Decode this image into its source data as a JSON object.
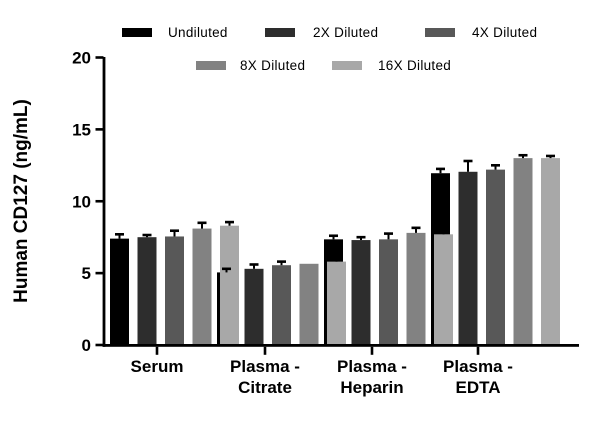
{
  "chart_data": {
    "type": "bar",
    "title": "",
    "ylabel": "Human CD127 (ng/mL)",
    "xlabel": "",
    "ylim": [
      0,
      20
    ],
    "yticks": [
      0,
      5,
      10,
      15,
      20
    ],
    "grid": false,
    "legend_position": "top",
    "categories": [
      "Serum",
      "Plasma -\nCitrate",
      "Plasma -\nHeparin",
      "Plasma -\nEDTA"
    ],
    "series": [
      {
        "name": "Undiluted",
        "color": "#000000",
        "values": [
          7.4,
          5.05,
          7.35,
          11.95
        ],
        "errors": [
          0.3,
          0.25,
          0.25,
          0.3
        ]
      },
      {
        "name": "2X Diluted",
        "color": "#2d2d2d",
        "values": [
          7.5,
          5.3,
          7.3,
          12.05
        ],
        "errors": [
          0.15,
          0.3,
          0.2,
          0.75
        ]
      },
      {
        "name": "4X Diluted",
        "color": "#585858",
        "values": [
          7.55,
          5.55,
          7.35,
          12.2
        ],
        "errors": [
          0.4,
          0.25,
          0.4,
          0.3
        ]
      },
      {
        "name": "8X Diluted",
        "color": "#828282",
        "values": [
          8.1,
          5.65,
          7.8,
          13.0
        ],
        "errors": [
          0.4,
          0,
          0.35,
          0.2
        ]
      },
      {
        "name": "16X Diluted",
        "color": "#a8a8a8",
        "values": [
          8.3,
          5.8,
          7.7,
          13.0
        ],
        "errors": [
          0.25,
          0.4,
          0.3,
          0.15
        ]
      }
    ],
    "error_bar_color": "#000000",
    "axis_color": "#000000"
  },
  "legend": {
    "rows": [
      [
        "Undiluted",
        "2X Diluted",
        "4X Diluted"
      ],
      [
        "8X Diluted",
        "16X Diluted"
      ]
    ]
  }
}
